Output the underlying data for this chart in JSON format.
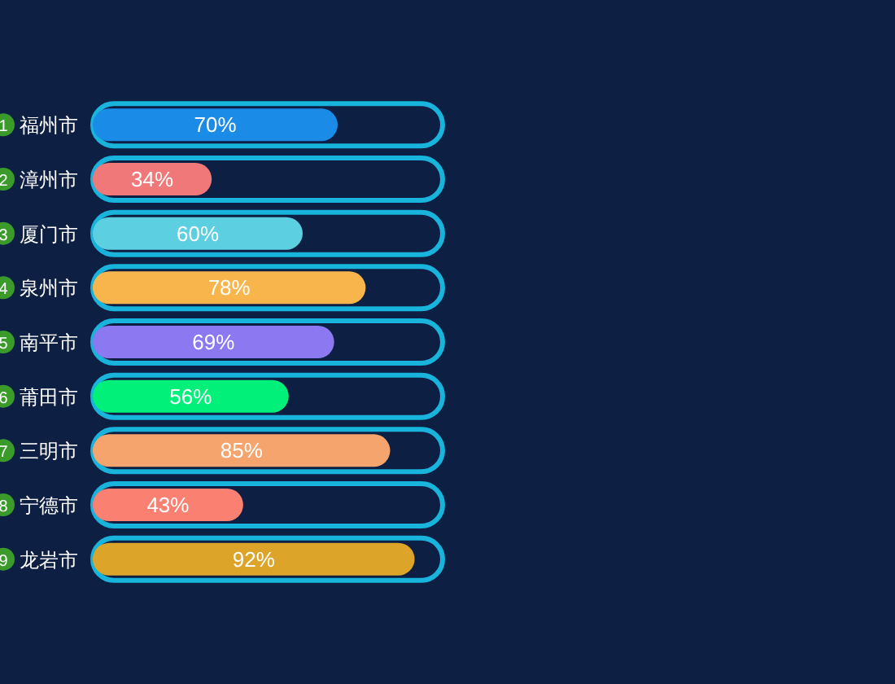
{
  "chart_data": {
    "type": "bar",
    "orientation": "horizontal",
    "categories": [
      "福州市",
      "漳州市",
      "厦门市",
      "泉州市",
      "南平市",
      "莆田市",
      "三明市",
      "宁德市",
      "龙岩市"
    ],
    "series": [
      {
        "color": "#18b4dc",
        "values": [
          100,
          100,
          100,
          100,
          100,
          100,
          100,
          100,
          100
        ]
      },
      {
        "values": [
          70,
          34,
          60,
          78,
          69,
          56,
          85,
          43,
          92
        ],
        "colors": [
          "#1a8be6",
          "#f07878",
          "#5ccfe0",
          "#f7b54c",
          "#8c78f0",
          "#00f07a",
          "#f4a46c",
          "#fa8072",
          "#dda42a"
        ],
        "value_labels": [
          "70%",
          "34%",
          "60%",
          "78%",
          "69%",
          "56%",
          "85%",
          "43%",
          "92%"
        ]
      }
    ],
    "annotations": [
      "1",
      "2",
      "3",
      "4",
      "5",
      "6",
      "7",
      "8",
      "9"
    ],
    "xlim": [
      0,
      100
    ],
    "tick_labels": "y"
  }
}
